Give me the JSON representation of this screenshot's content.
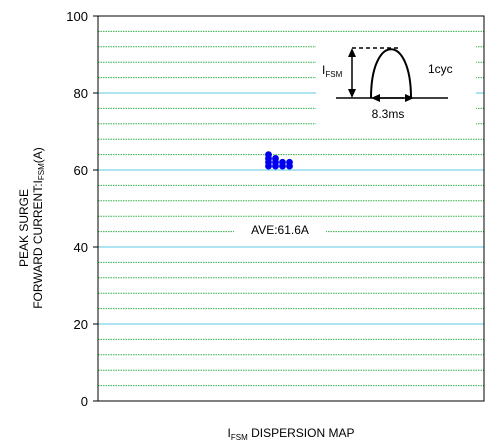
{
  "chart_data": {
    "type": "scatter",
    "title": "",
    "xlabel": {
      "prefix": "I",
      "sub": "FSM",
      "suffix": " DISPERSION MAP"
    },
    "ylabel": {
      "line1": "PEAK SURGE",
      "line2_prefix": "FORWARD CURRENT:I",
      "line2_sub": "FSM",
      "line2_suffix": "(A)"
    },
    "ylim": [
      0,
      100
    ],
    "yticks": [
      "0",
      "20",
      "40",
      "60",
      "80",
      "100"
    ],
    "major_grid_color": "#5bc8e6",
    "minor_grid_color": "#33b24a",
    "grid": true,
    "points": [
      {
        "x": 0,
        "y": 64
      },
      {
        "x": 0,
        "y": 63
      },
      {
        "x": 0,
        "y": 62
      },
      {
        "x": 0,
        "y": 61
      },
      {
        "x": 0,
        "y": 63
      },
      {
        "x": 0,
        "y": 62
      },
      {
        "x": 0,
        "y": 61
      },
      {
        "x": 0,
        "y": 62
      },
      {
        "x": 0,
        "y": 61
      },
      {
        "x": 0,
        "y": 62
      },
      {
        "x": 0,
        "y": 61
      }
    ],
    "point_color": "#0000ee",
    "average": {
      "label": "AVE:61.6A",
      "value": 61.6
    },
    "inset": {
      "ifsm_prefix": "I",
      "ifsm_sub": "FSM",
      "cycle_label": "1cyc",
      "duration_label": "8.3ms"
    }
  }
}
